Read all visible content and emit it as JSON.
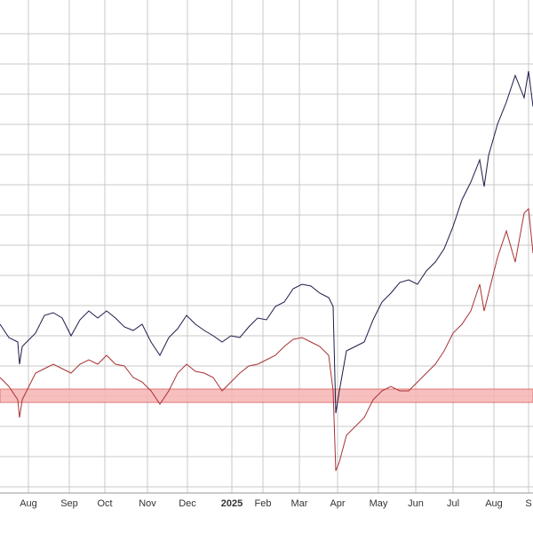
{
  "chart_data": {
    "type": "line",
    "x": [
      0,
      10,
      20,
      22,
      25,
      30,
      40,
      50,
      60,
      70,
      80,
      90,
      100,
      110,
      120,
      130,
      140,
      150,
      160,
      170,
      180,
      190,
      200,
      210,
      220,
      230,
      240,
      250,
      260,
      270,
      280,
      290,
      300,
      310,
      320,
      330,
      340,
      350,
      360,
      370,
      375,
      378,
      382,
      390,
      400,
      410,
      420,
      430,
      440,
      450,
      460,
      470,
      480,
      490,
      500,
      510,
      520,
      530,
      540,
      545,
      550,
      560,
      570,
      580,
      590,
      595,
      600
    ],
    "series": [
      {
        "color": "#1c1c4c",
        "values": [
          235,
          220,
          215,
          190,
          210,
          215,
          225,
          245,
          248,
          242,
          222,
          240,
          250,
          242,
          250,
          242,
          232,
          228,
          235,
          215,
          200,
          220,
          230,
          245,
          235,
          228,
          222,
          215,
          222,
          220,
          232,
          242,
          240,
          255,
          260,
          275,
          280,
          278,
          270,
          265,
          255,
          135,
          160,
          205,
          210,
          215,
          240,
          260,
          270,
          282,
          285,
          280,
          295,
          305,
          320,
          345,
          375,
          395,
          420,
          390,
          425,
          460,
          485,
          515,
          490,
          520,
          480
        ]
      },
      {
        "color": "#a83232",
        "values": [
          175,
          165,
          150,
          130,
          150,
          160,
          180,
          185,
          190,
          185,
          180,
          190,
          195,
          190,
          200,
          190,
          188,
          175,
          170,
          160,
          145,
          160,
          180,
          190,
          182,
          180,
          175,
          160,
          170,
          180,
          188,
          190,
          195,
          200,
          210,
          218,
          220,
          215,
          210,
          200,
          160,
          70,
          80,
          110,
          120,
          130,
          150,
          160,
          165,
          160,
          160,
          170,
          180,
          190,
          205,
          225,
          235,
          250,
          280,
          250,
          270,
          310,
          340,
          305,
          360,
          365,
          315
        ]
      }
    ],
    "band": [
      147,
      162
    ],
    "band_color": "#f7b5b5",
    "xlim": [
      0,
      600
    ],
    "xticks": [
      {
        "value": 32,
        "label": "Aug"
      },
      {
        "value": 78,
        "label": "Sep"
      },
      {
        "value": 118,
        "label": "Oct"
      },
      {
        "value": 166,
        "label": "Nov"
      },
      {
        "value": 211,
        "label": "Dec"
      },
      {
        "value": 261,
        "label": "2025"
      },
      {
        "value": 296,
        "label": "Feb"
      },
      {
        "value": 337,
        "label": "Mar"
      },
      {
        "value": 380,
        "label": "Apr"
      },
      {
        "value": 426,
        "label": "May"
      },
      {
        "value": 468,
        "label": "Jun"
      },
      {
        "value": 510,
        "label": "Jul"
      },
      {
        "value": 556,
        "label": "Aug"
      },
      {
        "value": 595,
        "label": "S"
      }
    ],
    "ylim": [
      45,
      600
    ],
    "yticks": [
      52,
      86,
      120,
      154,
      188,
      222,
      256,
      290,
      324,
      358,
      392,
      426,
      460,
      494,
      528,
      562
    ],
    "grid": true
  }
}
